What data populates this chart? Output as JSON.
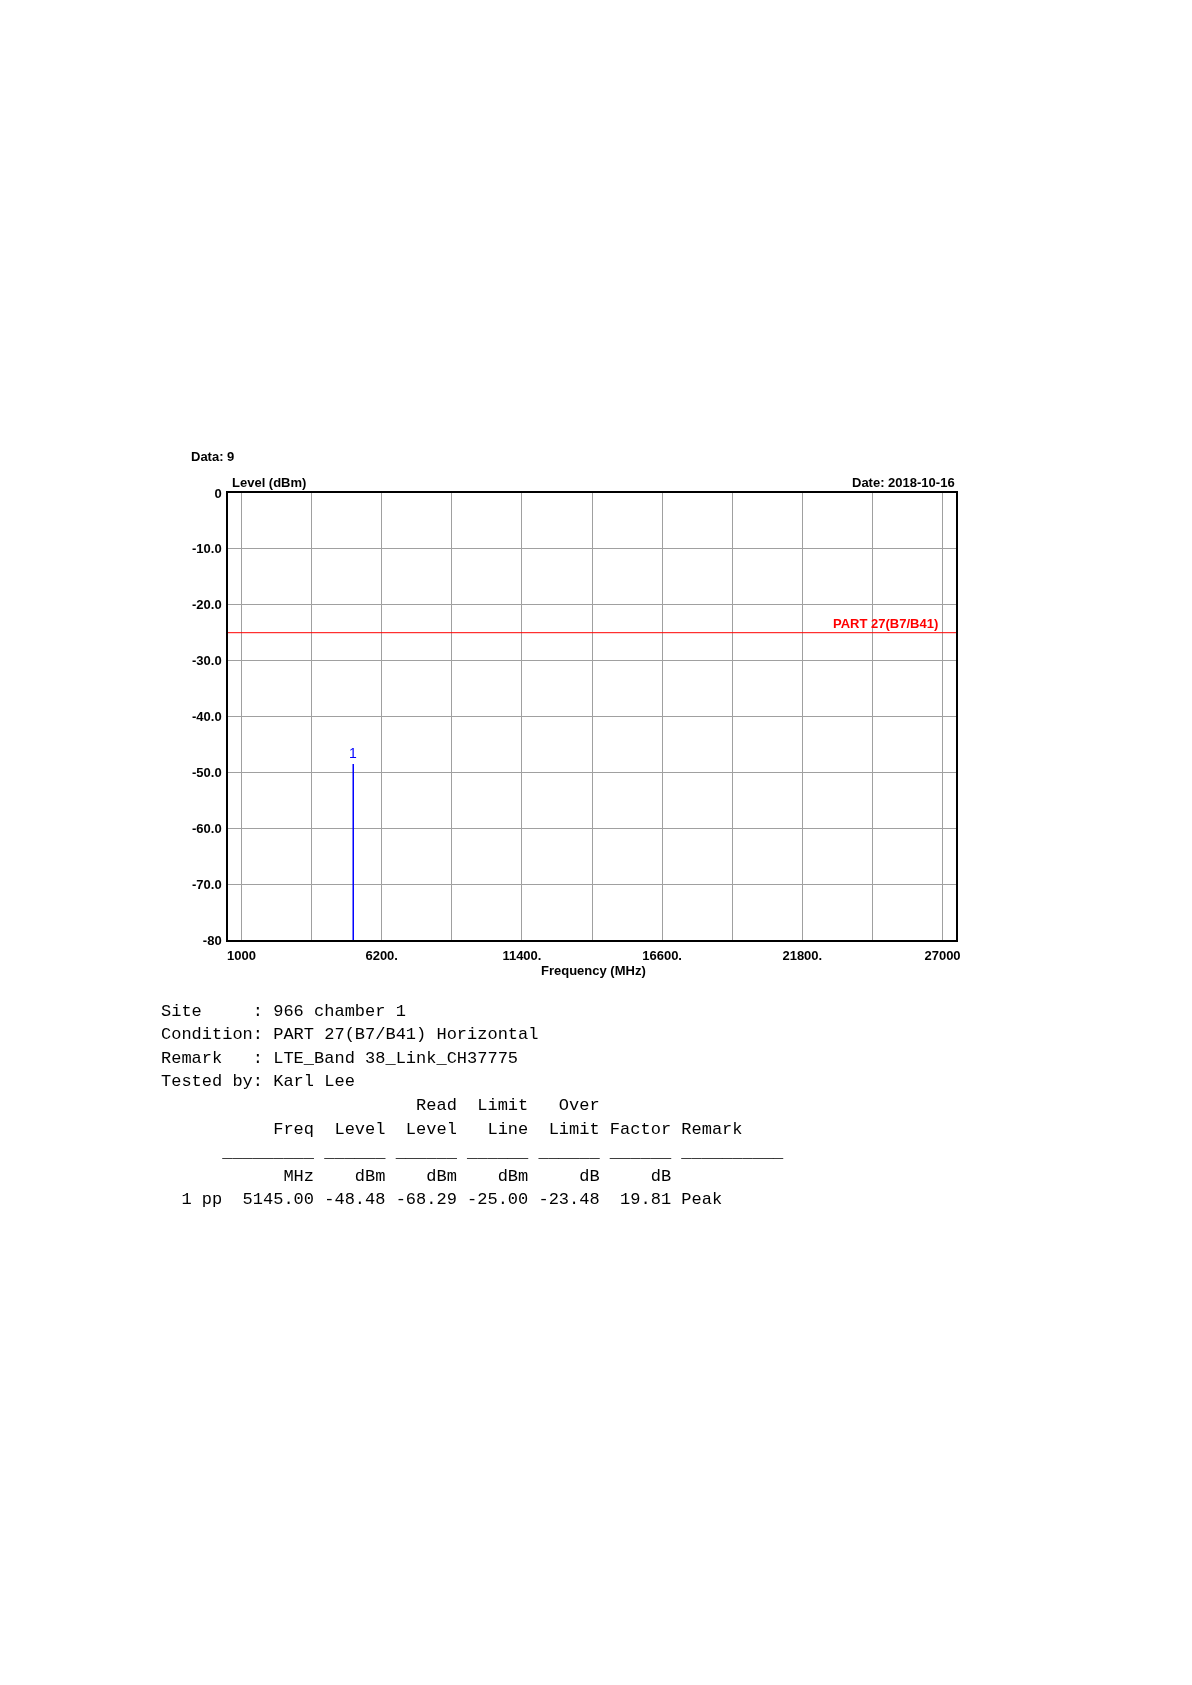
{
  "chart_data": {
    "type": "line",
    "title": "Data: 9",
    "subtitle": "Date: 2018-10-16",
    "xlabel": "Frequency (MHz)",
    "ylabel": "Level (dBm)",
    "series": [
      {
        "name": "1",
        "x": [
          5145,
          5145
        ],
        "values": [
          -80,
          -48.48
        ],
        "color": "#0000ff"
      }
    ],
    "xlim": [
      500,
      27500
    ],
    "xticks": [
      1000,
      {
        "value": 3600,
        "label": null
      },
      {
        "value": 6200,
        "label": "6200."
      },
      {
        "value": 8800,
        "label": null
      },
      {
        "value": 11400,
        "label": "11400."
      },
      {
        "value": 14000,
        "label": null
      },
      {
        "value": 16600,
        "label": "16600."
      },
      {
        "value": 19200,
        "label": null
      },
      {
        "value": 21800,
        "label": "21800."
      },
      {
        "value": 24400,
        "label": null
      },
      27000
    ],
    "ylim": [
      -80,
      0
    ],
    "yticks": [
      0,
      {
        "value": -10,
        "label": "-10.0"
      },
      {
        "value": -20,
        "label": "-20.0"
      },
      {
        "value": -30,
        "label": "-30.0"
      },
      {
        "value": -40,
        "label": "-40.0"
      },
      {
        "value": -50,
        "label": "-50.0"
      },
      {
        "value": -60,
        "label": "-60.0"
      },
      {
        "value": -70,
        "label": "-70.0"
      },
      -80
    ],
    "grid": true,
    "ref_lines": [
      {
        "axis": "y",
        "value": -25,
        "label": "PART 27(B7/B41)",
        "color": "#ff0000"
      }
    ],
    "annotations": [
      "Site     : 966 chamber 1",
      "Condition: PART 27(B7/B41) Horizontal",
      "Remark   : LTE_Band 38_Link_CH37775",
      "Tested by: Karl Lee",
      "                         Read  Limit   Over",
      "           Freq  Level  Level   Line  Limit Factor Remark",
      "      _________ ______ ______ ______ ______ ______ __________",
      "            MHz    dBm    dBm    dBm     dB     dB",
      "  1 pp  5145.00 -48.48 -68.29 -25.00 -23.48  19.81 Peak"
    ]
  }
}
